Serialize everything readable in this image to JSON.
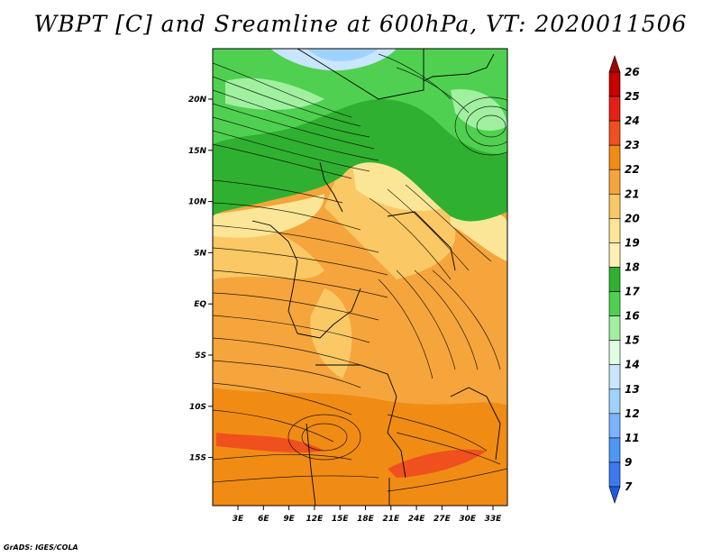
{
  "title": "WBPT [C] and Sreamline at 600hPa, VT: 2020011506",
  "credit": "GrADS: IGES/COLA",
  "map": {
    "lat_labels": [
      "20N",
      "15N",
      "10N",
      "5N",
      "EQ",
      "5S",
      "10S",
      "15S"
    ],
    "lon_labels": [
      "3E",
      "6E",
      "9E",
      "12E",
      "15E",
      "18E",
      "21E",
      "24E",
      "27E",
      "30E",
      "33E"
    ]
  },
  "colorbar": {
    "labels": [
      "26",
      "25",
      "24",
      "23",
      "22",
      "21",
      "20",
      "19",
      "18",
      "17",
      "16",
      "15",
      "14",
      "13",
      "12",
      "11",
      "9",
      "7"
    ],
    "colors": [
      "#a00000",
      "#c80000",
      "#e62014",
      "#f0501e",
      "#f08c14",
      "#f5a53c",
      "#fac864",
      "#fae696",
      "#fff0b4",
      "#30b030",
      "#50d050",
      "#a0f0a0",
      "#e0ffe0",
      "#c8e6ff",
      "#a0d2ff",
      "#78b4ff",
      "#5096f5",
      "#3c78f0",
      "#1e5ae6"
    ]
  }
}
